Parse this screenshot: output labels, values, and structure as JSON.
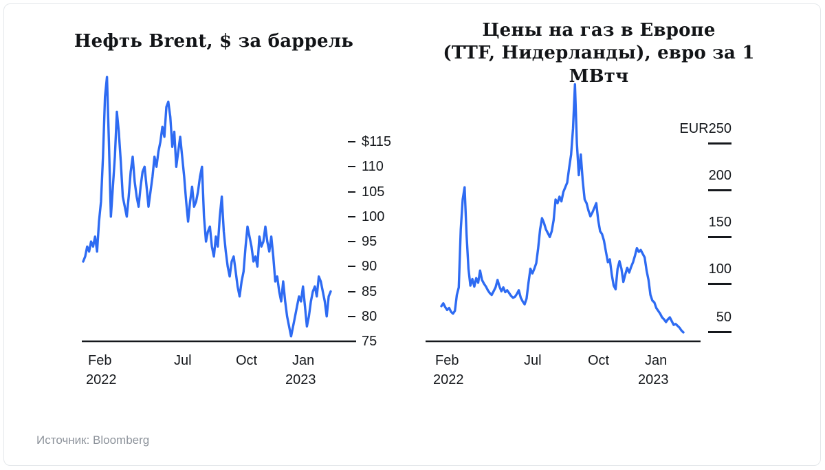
{
  "source": {
    "label": "Источник: Bloomberg"
  },
  "colors": {
    "accent": "#2e6bf2",
    "axis": "#15181c"
  },
  "chart_data": [
    {
      "type": "line",
      "title": "Нефть Brent, $ за баррель",
      "title_lines": [
        "Нефть Brent, $ за баррель"
      ],
      "unit": "USD за баррель",
      "x_range": [
        "Feb 2022",
        "Feb 2023"
      ],
      "x_tick_labels": [
        "Feb",
        "Jul",
        "Oct",
        "Jan"
      ],
      "x_year_labels": [
        "2022",
        "2023"
      ],
      "y_tick_labels": [
        "$115",
        "110",
        "105",
        "100",
        "95",
        "90",
        "85",
        "80",
        "75"
      ],
      "y_tick_values": [
        115,
        110,
        105,
        100,
        95,
        90,
        85,
        80,
        75
      ],
      "ylim": [
        75,
        130
      ],
      "grid": false,
      "legend": "none",
      "line_color": "#2e6bf2",
      "values": [
        91,
        92,
        94,
        93,
        95,
        94,
        96,
        93,
        99,
        103,
        112,
        124,
        128,
        115,
        100,
        106,
        112,
        121,
        117,
        111,
        104,
        102,
        100,
        104,
        109,
        112,
        107,
        104,
        102,
        106,
        109,
        110,
        106,
        102,
        105,
        108,
        112,
        110,
        113,
        115,
        118,
        116,
        122,
        123,
        120,
        114,
        117,
        110,
        113,
        116,
        112,
        108,
        103,
        99,
        103,
        106,
        102,
        103,
        105,
        108,
        110,
        100,
        95,
        97,
        98,
        94,
        92,
        96,
        94,
        100,
        104,
        97,
        93,
        90,
        88,
        91,
        92,
        89,
        86,
        84,
        87,
        89,
        94,
        98,
        96,
        94,
        91,
        92,
        90,
        96,
        94,
        95,
        98,
        95,
        93,
        96,
        92,
        87,
        88,
        85,
        83,
        87,
        83,
        80,
        78,
        76,
        78,
        80,
        82,
        84,
        83,
        86,
        82,
        78,
        80,
        83,
        85,
        86,
        84,
        88,
        87,
        85,
        83,
        80,
        84,
        85
      ]
    },
    {
      "type": "line",
      "title": "Цены на газ в Европе (TTF, Нидерланды), евро за 1 МВтч",
      "title_lines": [
        "Цены на газ в Европе",
        "(TTF, Нидерланды), евро за 1 МВтч"
      ],
      "unit": "EUR за 1 МВтч",
      "x_range": [
        "Feb 2022",
        "Feb 2023"
      ],
      "x_tick_labels": [
        "Feb",
        "Jul",
        "Oct",
        "Jan"
      ],
      "x_year_labels": [
        "2022",
        "2023"
      ],
      "y_tick_labels": [
        "EUR250",
        "200",
        "150",
        "100",
        "50"
      ],
      "y_tick_values": [
        250,
        200,
        150,
        100,
        50
      ],
      "ylim": [
        40,
        330
      ],
      "grid": false,
      "legend": "none",
      "line_color": "#2e6bf2",
      "values": [
        78,
        81,
        77,
        74,
        76,
        72,
        70,
        73,
        90,
        98,
        160,
        192,
        205,
        155,
        118,
        100,
        107,
        99,
        108,
        103,
        116,
        106,
        102,
        99,
        95,
        92,
        90,
        94,
        98,
        106,
        99,
        94,
        98,
        93,
        95,
        92,
        89,
        87,
        88,
        91,
        95,
        87,
        83,
        80,
        86,
        103,
        118,
        113,
        118,
        124,
        140,
        160,
        172,
        167,
        160,
        156,
        152,
        158,
        170,
        192,
        188,
        195,
        190,
        200,
        205,
        210,
        226,
        240,
        268,
        315,
        252,
        218,
        240,
        212,
        192,
        188,
        180,
        174,
        178,
        183,
        188,
        170,
        158,
        155,
        148,
        136,
        125,
        128,
        112,
        100,
        96,
        118,
        126,
        118,
        104,
        112,
        119,
        114,
        120,
        125,
        132,
        140,
        136,
        138,
        134,
        130,
        116,
        106,
        90,
        84,
        82,
        76,
        73,
        70,
        66,
        64,
        61,
        64,
        66,
        62,
        58,
        59,
        57,
        55,
        52,
        50
      ]
    }
  ]
}
